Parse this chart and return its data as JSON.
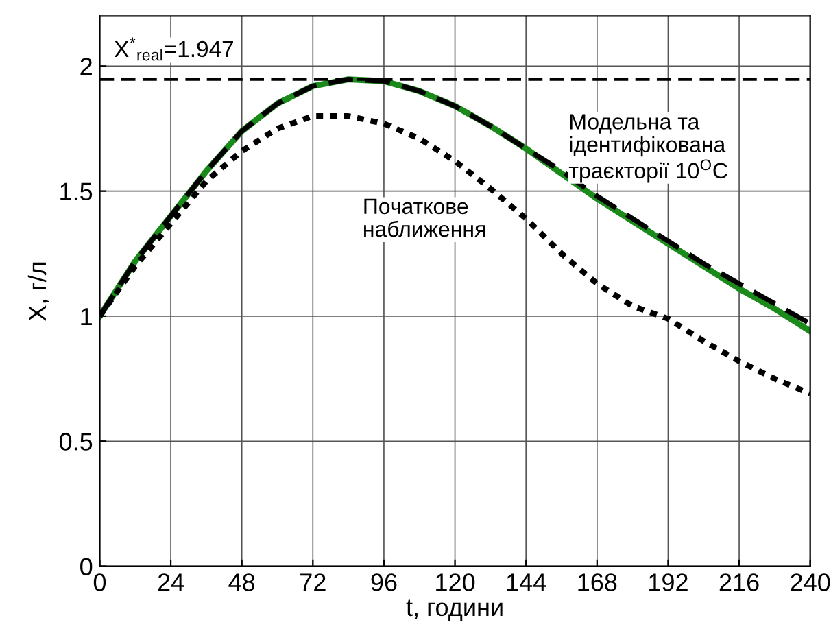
{
  "chart_data": {
    "type": "line",
    "xlabel": "t, години",
    "ylabel": "X, г/л",
    "x": [
      0,
      12,
      24,
      36,
      48,
      60,
      72,
      84,
      96,
      108,
      120,
      132,
      144,
      156,
      168,
      180,
      192,
      204,
      216,
      228,
      240
    ],
    "series": [
      {
        "color": "#1a8a1a",
        "line_style": "solid",
        "values": [
          1.0,
          1.22,
          1.4,
          1.58,
          1.74,
          1.85,
          1.92,
          1.947,
          1.94,
          1.9,
          1.84,
          1.76,
          1.67,
          1.57,
          1.47,
          1.38,
          1.29,
          1.2,
          1.11,
          1.03,
          0.94
        ]
      },
      {
        "color": "#000000",
        "line_style": "dashed",
        "values": [
          1.0,
          1.22,
          1.4,
          1.58,
          1.74,
          1.85,
          1.92,
          1.947,
          1.94,
          1.9,
          1.84,
          1.76,
          1.67,
          1.58,
          1.48,
          1.39,
          1.3,
          1.21,
          1.13,
          1.05,
          0.97
        ]
      },
      {
        "color": "#000000",
        "line_style": "dotted",
        "values": [
          1.0,
          1.2,
          1.37,
          1.54,
          1.66,
          1.75,
          1.8,
          1.8,
          1.77,
          1.71,
          1.62,
          1.51,
          1.39,
          1.25,
          1.13,
          1.04,
          0.99,
          0.9,
          0.82,
          0.75,
          0.69
        ]
      }
    ],
    "ref_lines": [
      {
        "axis": "y",
        "value": 1.947,
        "label": "X$^{*}$$_{real}$=1.947",
        "color": "#000000",
        "line_style": "dashed"
      }
    ],
    "annotations": [
      "Модельна та\nідентифікована\nтраєкторії 10$^{O}$C",
      "Початкове\nнаближення"
    ],
    "xlim": [
      0,
      240
    ],
    "ylim": [
      0,
      2.2
    ],
    "xticks": [
      0,
      24,
      48,
      72,
      96,
      120,
      144,
      168,
      192,
      216,
      240
    ],
    "yticks": [
      0,
      0.5,
      1,
      1.5,
      2
    ],
    "grid": true
  }
}
